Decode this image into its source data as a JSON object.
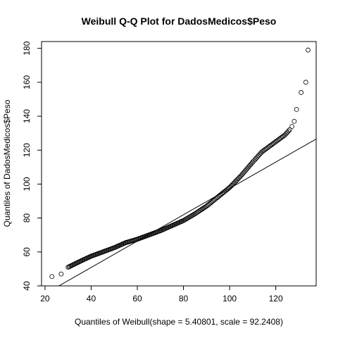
{
  "chart_data": {
    "type": "scatter",
    "title": "Weibull Q-Q Plot for DadosMedicos$Peso",
    "xlabel": "Quantiles of Weibull(shape = 5.40801, scale = 92.2408)",
    "ylabel": "Quantiles of DadosMedicos$Peso",
    "xlim": [
      18.5,
      137.5
    ],
    "ylim": [
      40,
      184
    ],
    "xticks": [
      20,
      40,
      60,
      80,
      100,
      120
    ],
    "yticks": [
      40,
      60,
      80,
      100,
      120,
      140,
      160,
      180
    ],
    "grid": false,
    "legend": "none",
    "reference_line": {
      "x": [
        26,
        140
      ],
      "y": [
        40,
        128.5
      ]
    },
    "series": [
      {
        "marker": "open-circle",
        "curve": {
          "x": [
            23,
            27,
            30,
            33,
            36,
            40,
            45,
            50,
            55,
            60,
            65,
            70,
            75,
            80,
            85,
            90,
            95,
            100,
            105,
            110,
            112,
            114,
            116,
            118,
            120,
            122,
            124,
            126
          ],
          "y": [
            45.5,
            47,
            51,
            53,
            55,
            57.5,
            60,
            62.5,
            65.5,
            67.5,
            70,
            72.5,
            75.5,
            78.5,
            82.5,
            87,
            92.5,
            98,
            105,
            113,
            116,
            119,
            121,
            123,
            125,
            127,
            129,
            132
          ]
        },
        "outliers": {
          "x": [
            127,
            128,
            129,
            131,
            133
          ],
          "y": [
            134,
            137,
            144,
            154,
            160
          ]
        },
        "max_point": {
          "x": 134,
          "y": 179
        }
      }
    ]
  }
}
